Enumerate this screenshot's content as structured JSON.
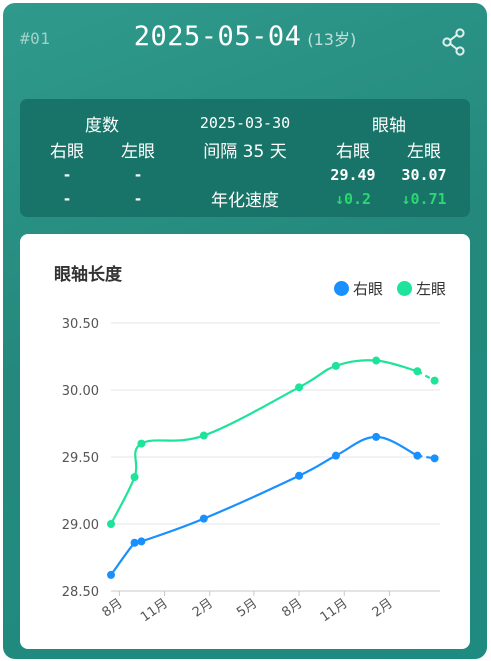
{
  "header": {
    "record_id": "#01",
    "date": "2025-05-04",
    "age": "(13岁)",
    "share_icon": "share-icon"
  },
  "stats": {
    "degree_title": "度数",
    "prev_date": "2025-03-30",
    "axial_title": "眼轴",
    "right_eye": "右眼",
    "left_eye": "左眼",
    "interval": "间隔 35 天",
    "degree_right_value": "-",
    "degree_left_value": "-",
    "degree_right_rate": "-",
    "degree_left_rate": "-",
    "axial_right_value": "29.49",
    "axial_left_value": "30.07",
    "annual_rate_label": "年化速度",
    "axial_right_rate": "↓0.2",
    "axial_left_rate": "↓0.71",
    "rate_color": "#2ed573"
  },
  "chart_data": {
    "type": "line",
    "title": "眼轴长度",
    "xlabel": "",
    "ylabel": "",
    "legend_position": "top-right",
    "grid": true,
    "ylim": [
      28.5,
      30.5
    ],
    "yticks": [
      "28.50",
      "29.00",
      "29.50",
      "30.00",
      "30.50"
    ],
    "xlim": [
      "2023-07-15",
      "2025-05-15"
    ],
    "xticks": [
      {
        "date": "2023-08-01",
        "label": "8月"
      },
      {
        "date": "2023-11-01",
        "label": "11月"
      },
      {
        "date": "2024-02-01",
        "label": "2月"
      },
      {
        "date": "2024-05-01",
        "label": "5月"
      },
      {
        "date": "2024-08-01",
        "label": "8月"
      },
      {
        "date": "2024-11-01",
        "label": "11月"
      },
      {
        "date": "2025-02-01",
        "label": "2月"
      }
    ],
    "series": [
      {
        "name": "右眼",
        "color": "#1890ff",
        "points": [
          {
            "x": "2023-07-15",
            "y": 28.62
          },
          {
            "x": "2023-09-01",
            "y": 28.86
          },
          {
            "x": "2023-09-15",
            "y": 28.87
          },
          {
            "x": "2024-01-20",
            "y": 29.04
          },
          {
            "x": "2024-08-01",
            "y": 29.36
          },
          {
            "x": "2024-10-15",
            "y": 29.51
          },
          {
            "x": "2025-01-05",
            "y": 29.65
          },
          {
            "x": "2025-03-30",
            "y": 29.51
          },
          {
            "x": "2025-05-04",
            "y": 29.49
          }
        ]
      },
      {
        "name": "左眼",
        "color": "#1ee39a",
        "points": [
          {
            "x": "2023-07-15",
            "y": 29.0
          },
          {
            "x": "2023-09-01",
            "y": 29.35
          },
          {
            "x": "2023-09-15",
            "y": 29.6
          },
          {
            "x": "2024-01-20",
            "y": 29.66
          },
          {
            "x": "2024-08-01",
            "y": 30.02
          },
          {
            "x": "2024-10-15",
            "y": 30.18
          },
          {
            "x": "2025-01-05",
            "y": 30.22
          },
          {
            "x": "2025-03-30",
            "y": 30.14
          },
          {
            "x": "2025-05-04",
            "y": 30.07
          }
        ]
      }
    ]
  }
}
